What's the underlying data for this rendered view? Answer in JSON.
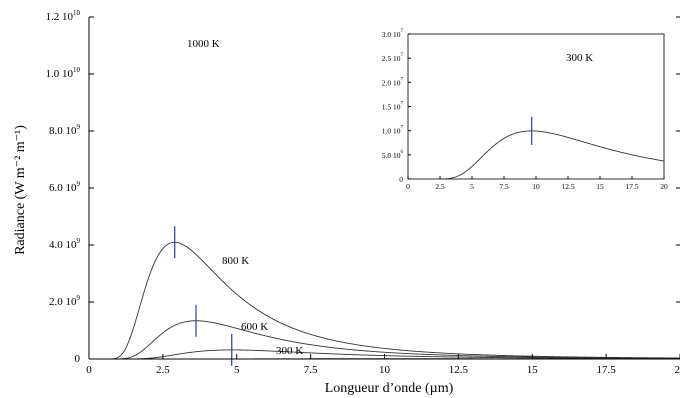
{
  "chart_data": [
    {
      "type": "line",
      "title": "",
      "xlabel": "Longueur d’onde (µm)",
      "ylabel": "Radiance (W m⁻² m⁻¹)",
      "xlim": [
        0,
        20
      ],
      "ylim": [
        0,
        12000000000.0
      ],
      "grid": false,
      "x_ticks": [
        {
          "value": 0,
          "label": "0"
        },
        {
          "value": 2.5,
          "label": "2.5"
        },
        {
          "value": 5,
          "label": "5"
        },
        {
          "value": 7.5,
          "label": "7.5"
        },
        {
          "value": 10,
          "label": "10"
        },
        {
          "value": 12.5,
          "label": "12.5"
        },
        {
          "value": 15,
          "label": "15"
        },
        {
          "value": 17.5,
          "label": "17.5"
        },
        {
          "value": 20,
          "label": "20"
        }
      ],
      "y_ticks": [
        {
          "value": 0,
          "mant": "0",
          "exp": ""
        },
        {
          "value": 2000000000.0,
          "mant": "2.0 10",
          "exp": "9"
        },
        {
          "value": 4000000000.0,
          "mant": "4.0 10",
          "exp": "9"
        },
        {
          "value": 6000000000.0,
          "mant": "6.0 10",
          "exp": "9"
        },
        {
          "value": 8000000000.0,
          "mant": "8.0 10",
          "exp": "9"
        },
        {
          "value": 10000000000.0,
          "mant": "1.0 10",
          "exp": "10"
        },
        {
          "value": 12000000000.0,
          "mant": "1.2 10",
          "exp": "10"
        }
      ],
      "series": [
        {
          "name": "1000 K",
          "temperature": 1000,
          "peak_x": 2.9
        },
        {
          "name": "800 K",
          "temperature": 800,
          "peak_x": 3.62
        },
        {
          "name": "600 K",
          "temperature": 600,
          "peak_x": 4.83
        },
        {
          "name": "300 K",
          "temperature": 300,
          "peak_x": 9.66
        }
      ]
    },
    {
      "type": "line",
      "title": "",
      "xlabel": "",
      "ylabel": "",
      "xlim": [
        0,
        20
      ],
      "ylim": [
        0,
        30000000.0
      ],
      "grid": false,
      "x_ticks": [
        {
          "value": 0,
          "label": "0"
        },
        {
          "value": 2.5,
          "label": "2.5"
        },
        {
          "value": 5,
          "label": "5"
        },
        {
          "value": 7.5,
          "label": "7.5"
        },
        {
          "value": 10,
          "label": "10"
        },
        {
          "value": 12.5,
          "label": "12.5"
        },
        {
          "value": 15,
          "label": "15"
        },
        {
          "value": 17.5,
          "label": "17.5"
        },
        {
          "value": 20,
          "label": "20"
        }
      ],
      "y_ticks": [
        {
          "value": 0,
          "mant": "0",
          "exp": ""
        },
        {
          "value": 5000000.0,
          "mant": "5.0 10",
          "exp": "6"
        },
        {
          "value": 10000000.0,
          "mant": "1.0 10",
          "exp": "7"
        },
        {
          "value": 15000000.0,
          "mant": "1.5 10",
          "exp": "7"
        },
        {
          "value": 20000000.0,
          "mant": "2.0 10",
          "exp": "7"
        },
        {
          "value": 25000000.0,
          "mant": "2.5 10",
          "exp": "7"
        },
        {
          "value": 30000000.0,
          "mant": "3.0 10",
          "exp": "7"
        }
      ],
      "series": [
        {
          "name": "300 K",
          "temperature": 300,
          "peak_x": 9.66
        }
      ]
    }
  ],
  "colors": {
    "curve": "#333333",
    "peak_marker": "#2a4fb5"
  }
}
